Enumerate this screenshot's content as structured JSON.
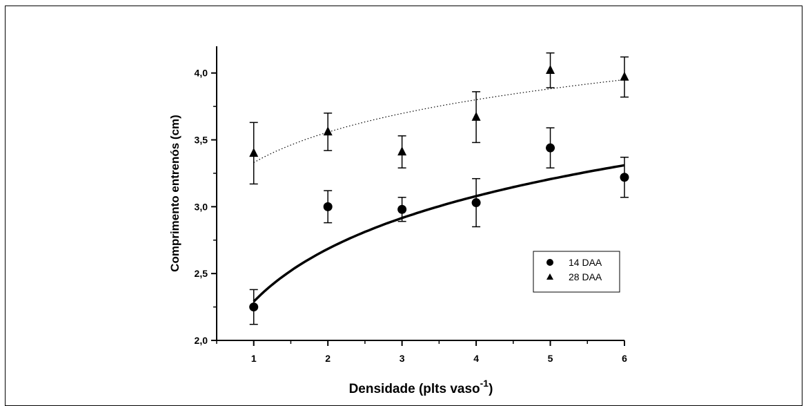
{
  "chart_data": {
    "type": "scatter",
    "xlabel": "Densidade (plts vaso",
    "xlabel_superscript": "-1",
    "xlabel_close": ")",
    "ylabel": "Comprimento entrenós (cm)",
    "xlim": [
      0.5,
      6
    ],
    "ylim": [
      2.0,
      4.2
    ],
    "x_ticks": [
      "1",
      "2",
      "3",
      "4",
      "5",
      "6"
    ],
    "y_ticks": [
      "2,0",
      "2,5",
      "3,0",
      "3,5",
      "4,0"
    ],
    "grid": false,
    "legend_position": "right",
    "series": [
      {
        "name": "14 DAA",
        "marker": "circle",
        "x": [
          1,
          2,
          3,
          4,
          5,
          6
        ],
        "values": [
          2.25,
          3.0,
          2.98,
          3.03,
          3.44,
          3.22
        ],
        "error": [
          0.13,
          0.12,
          0.09,
          0.18,
          0.15,
          0.15
        ],
        "fit": {
          "style": "solid",
          "form": "logarithmic",
          "y_at_1": 2.29,
          "y_at_6": 3.31
        }
      },
      {
        "name": "28 DAA",
        "marker": "triangle",
        "x": [
          1,
          2,
          3,
          4,
          5,
          6
        ],
        "values": [
          3.4,
          3.56,
          3.41,
          3.67,
          4.02,
          3.97
        ],
        "error": [
          0.23,
          0.14,
          0.12,
          0.19,
          0.13,
          0.15
        ],
        "fit": {
          "style": "dotted",
          "form": "power",
          "y_at_1": 3.33,
          "y_at_6": 3.95
        }
      }
    ]
  }
}
